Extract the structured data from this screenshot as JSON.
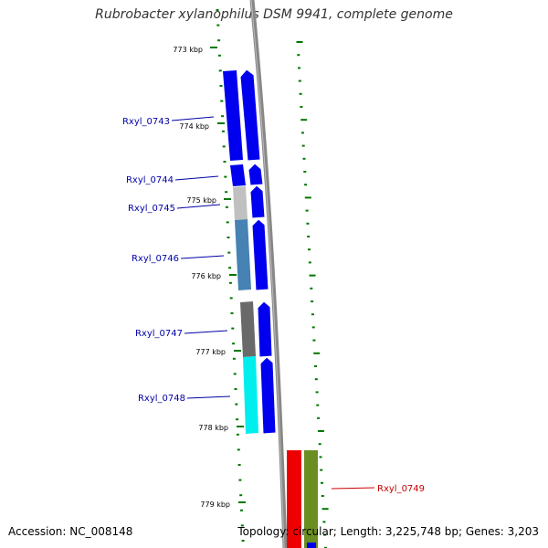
{
  "title": "Rubrobacter xylanophilus DSM 9941, complete genome",
  "footer": {
    "accession": "Accession: NC_008148",
    "topology": "Topology: circular; Length: 3,225,748 bp; Genes: 3,203"
  },
  "scale": {
    "unit": "kbp",
    "tick_labels": [
      "773 kbp",
      "774 kbp",
      "775 kbp",
      "776 kbp",
      "777 kbp",
      "778 kbp",
      "779 kbp"
    ]
  },
  "genes": [
    {
      "locus": "Rxyl_0743",
      "color": "#0000ee",
      "strand": "+"
    },
    {
      "locus": "Rxyl_0744",
      "color": "#0000ee",
      "strand": "+"
    },
    {
      "locus": "Rxyl_0745",
      "color": "#c0c0c0",
      "strand": "+"
    },
    {
      "locus": "Rxyl_0746",
      "color": "#4682b4",
      "strand": "+"
    },
    {
      "locus": "Rxyl_0747",
      "color": "#696969",
      "strand": "+"
    },
    {
      "locus": "Rxyl_0748",
      "color": "#00eeee",
      "strand": "+"
    },
    {
      "locus": "Rxyl_0749",
      "color": "#ee0000",
      "strand": "-"
    }
  ],
  "colors": {
    "backbone": "#888888",
    "tick": "#007700",
    "label_forward": "#0000aa",
    "label_reverse": "#cc0000",
    "reverse_category": "#6b8e23"
  }
}
